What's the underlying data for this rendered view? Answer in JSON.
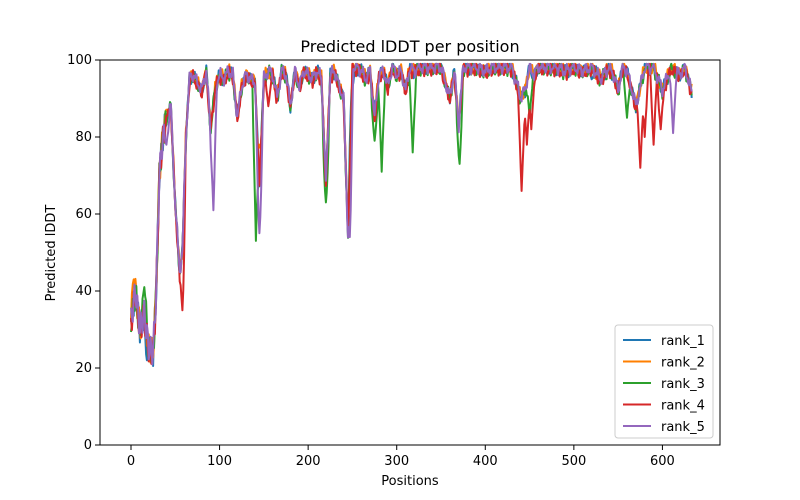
{
  "chart_data": {
    "type": "line",
    "title": "Predicted lDDT per position",
    "xlabel": "Positions",
    "ylabel": "Predicted lDDT",
    "xlim": [
      -35,
      665
    ],
    "ylim": [
      0,
      100
    ],
    "xticks": [
      0,
      100,
      200,
      300,
      400,
      500,
      600
    ],
    "yticks": [
      0,
      20,
      40,
      60,
      80,
      100
    ],
    "legend_location": "lower-right",
    "base_profile": {
      "x": [
        0,
        5,
        10,
        15,
        20,
        25,
        28,
        32,
        36,
        40,
        45,
        50,
        55,
        58,
        62,
        66,
        70,
        75,
        80,
        85,
        90,
        95,
        100,
        105,
        110,
        115,
        120,
        125,
        130,
        135,
        140,
        145,
        150,
        155,
        160,
        165,
        170,
        175,
        180,
        185,
        190,
        195,
        200,
        205,
        210,
        215,
        220,
        225,
        230,
        235,
        240,
        245,
        250,
        255,
        260,
        265,
        270,
        275,
        280,
        285,
        290,
        295,
        300,
        305,
        310,
        315,
        320,
        325,
        330,
        340,
        350,
        360,
        365,
        370,
        375,
        380,
        390,
        400,
        410,
        420,
        430,
        440,
        445,
        450,
        455,
        460,
        470,
        480,
        490,
        500,
        510,
        520,
        530,
        540,
        545,
        550,
        555,
        560,
        570,
        580,
        590,
        600,
        610,
        620,
        625,
        630,
        633
      ],
      "y": [
        32,
        40,
        30,
        34,
        25,
        24,
        37,
        70,
        80,
        85,
        88,
        62,
        45,
        50,
        80,
        95,
        96,
        94,
        92,
        97,
        82,
        93,
        96,
        95,
        97,
        96,
        85,
        93,
        96,
        95,
        94,
        68,
        95,
        97,
        96,
        90,
        97,
        96,
        88,
        97,
        93,
        97,
        96,
        95,
        97,
        95,
        68,
        96,
        97,
        93,
        90,
        55,
        98,
        98,
        97,
        95,
        97,
        85,
        96,
        97,
        93,
        98,
        96,
        97,
        92,
        98,
        97,
        98,
        98,
        98,
        98,
        90,
        97,
        83,
        98,
        98,
        98,
        97,
        98,
        98,
        98,
        90,
        92,
        98,
        96,
        98,
        98,
        98,
        97,
        98,
        97,
        98,
        95,
        98,
        96,
        92,
        98,
        97,
        88,
        98,
        98,
        92,
        98,
        96,
        98,
        94,
        92
      ]
    },
    "series": [
      {
        "name": "rank_1",
        "color": "#1f77b4",
        "offset": 0.0,
        "dips": [
          [
            18,
            22
          ],
          [
            250,
            93
          ],
          [
            520,
            95
          ],
          [
            548,
            93
          ]
        ]
      },
      {
        "name": "rank_2",
        "color": "#ff7f00",
        "offset": 0.3,
        "dips": [
          [
            3,
            43
          ],
          [
            145,
            78
          ],
          [
            567,
            91
          ]
        ]
      },
      {
        "name": "rank_3",
        "color": "#2ca02c",
        "offset": -0.2,
        "dips": [
          [
            15,
            41
          ],
          [
            141,
            53
          ],
          [
            220,
            63
          ],
          [
            275,
            79
          ],
          [
            283,
            71
          ],
          [
            318,
            76
          ],
          [
            371,
            73
          ],
          [
            450,
            85
          ],
          [
            560,
            85
          ]
        ]
      },
      {
        "name": "rank_4",
        "color": "#d62728",
        "offset": -0.4,
        "dips": [
          [
            58,
            35
          ],
          [
            155,
            88
          ],
          [
            441,
            66
          ],
          [
            447,
            78
          ],
          [
            452,
            82
          ],
          [
            575,
            72
          ],
          [
            580,
            80
          ],
          [
            590,
            78
          ],
          [
            598,
            82
          ]
        ]
      },
      {
        "name": "rank_5",
        "color": "#9467bd",
        "offset": 0.2,
        "dips": [
          [
            40,
            78
          ],
          [
            93,
            61
          ],
          [
            145,
            55
          ],
          [
            247,
            54
          ],
          [
            635,
            91
          ],
          [
            612,
            81
          ]
        ]
      }
    ]
  }
}
